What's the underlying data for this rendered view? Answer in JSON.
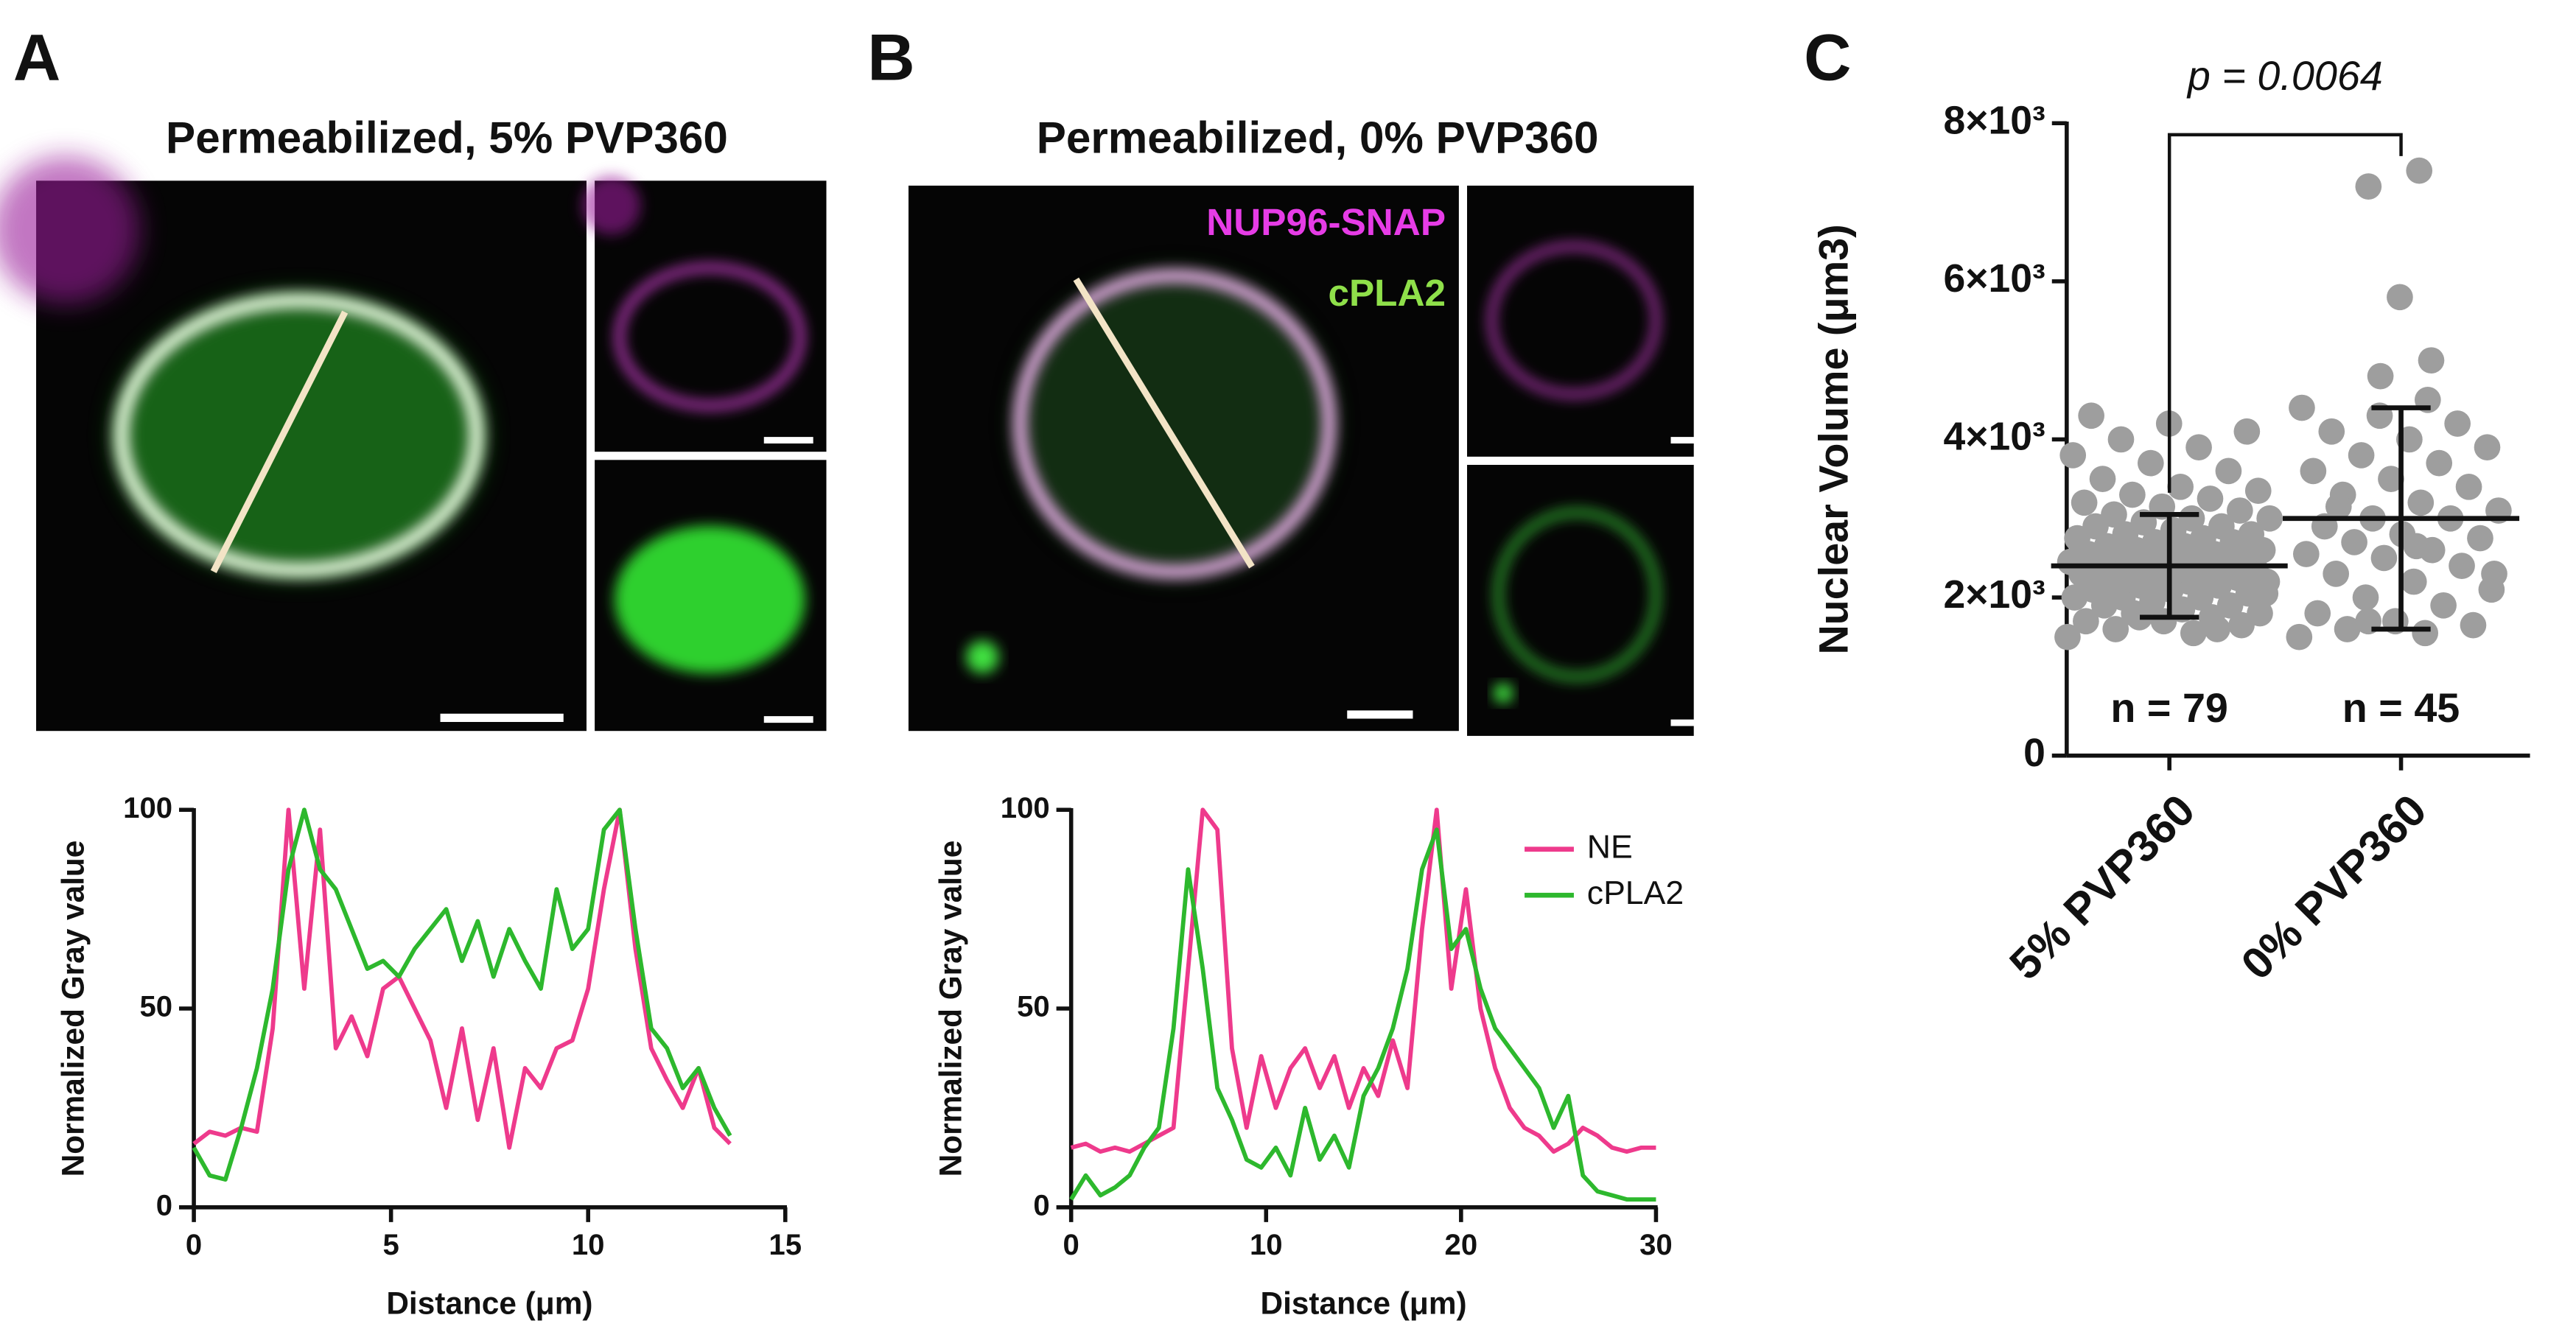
{
  "panels": [
    {
      "letter": "A",
      "title": "Permeabilized, 5% PVP360"
    },
    {
      "letter": "B",
      "title": "Permeabilized, 0% PVP360",
      "channel_labels": [
        {
          "text": "NUP96-SNAP",
          "color": "#e63ce6"
        },
        {
          "text": "cPLA2",
          "color": "#8fe04a"
        }
      ]
    },
    {
      "letter": "C"
    }
  ],
  "chart_data": [
    {
      "type": "line",
      "xlabel": "Distance (μm)",
      "ylabel": "Normalized Gray value",
      "xlim": [
        0,
        15
      ],
      "xticks": [
        0,
        5,
        10,
        15
      ],
      "ylim": [
        0,
        100
      ],
      "yticks": [
        0,
        50,
        100
      ],
      "legend": false,
      "x": [
        0,
        0.4,
        0.8,
        1.2,
        1.6,
        2.0,
        2.4,
        2.8,
        3.2,
        3.6,
        4.0,
        4.4,
        4.8,
        5.2,
        5.6,
        6.0,
        6.4,
        6.8,
        7.2,
        7.6,
        8.0,
        8.4,
        8.8,
        9.2,
        9.6,
        10.0,
        10.4,
        10.8,
        11.2,
        11.6,
        12.0,
        12.4,
        12.8,
        13.2,
        13.6
      ],
      "series": [
        {
          "name": "NE",
          "color": "#ee3a8c",
          "values": [
            16,
            19,
            18,
            20,
            19,
            45,
            100,
            55,
            95,
            40,
            48,
            38,
            55,
            58,
            50,
            42,
            25,
            45,
            22,
            40,
            15,
            35,
            30,
            40,
            42,
            55,
            80,
            100,
            65,
            40,
            32,
            25,
            35,
            20,
            16
          ]
        },
        {
          "name": "cPLA2",
          "color": "#2db82d",
          "values": [
            15,
            8,
            7,
            20,
            35,
            55,
            85,
            100,
            85,
            80,
            70,
            60,
            62,
            58,
            65,
            70,
            75,
            62,
            72,
            58,
            70,
            62,
            55,
            80,
            65,
            70,
            95,
            100,
            70,
            45,
            40,
            30,
            35,
            25,
            18
          ]
        }
      ]
    },
    {
      "type": "line",
      "xlabel": "Distance (μm)",
      "ylabel": "Normalized Gray value",
      "xlim": [
        0,
        30
      ],
      "xticks": [
        0,
        10,
        20,
        30
      ],
      "ylim": [
        0,
        100
      ],
      "yticks": [
        0,
        50,
        100
      ],
      "legend": true,
      "x": [
        0,
        0.75,
        1.5,
        2.25,
        3,
        3.75,
        4.5,
        5.25,
        6,
        6.75,
        7.5,
        8.25,
        9,
        9.75,
        10.5,
        11.25,
        12,
        12.75,
        13.5,
        14.25,
        15,
        15.75,
        16.5,
        17.25,
        18,
        18.75,
        19.5,
        20.25,
        21,
        21.75,
        22.5,
        23.25,
        24,
        24.75,
        25.5,
        26.25,
        27,
        27.75,
        28.5,
        29.25,
        30
      ],
      "series": [
        {
          "name": "NE",
          "color": "#ee3a8c",
          "values": [
            15,
            16,
            14,
            15,
            14,
            16,
            18,
            20,
            60,
            100,
            95,
            40,
            20,
            38,
            25,
            35,
            40,
            30,
            38,
            25,
            35,
            28,
            42,
            30,
            70,
            100,
            55,
            80,
            50,
            35,
            25,
            20,
            18,
            14,
            16,
            20,
            18,
            15,
            14,
            15,
            15
          ]
        },
        {
          "name": "cPLA2",
          "color": "#2db82d",
          "values": [
            2,
            8,
            3,
            5,
            8,
            15,
            20,
            45,
            85,
            60,
            30,
            22,
            12,
            10,
            15,
            8,
            25,
            12,
            18,
            10,
            28,
            35,
            45,
            60,
            85,
            95,
            65,
            70,
            55,
            45,
            40,
            35,
            30,
            20,
            28,
            8,
            4,
            3,
            2,
            2,
            2
          ]
        }
      ]
    },
    {
      "type": "dot",
      "ylabel": "Nuclear Volume (μm3)",
      "color": "#9e9e9e",
      "categories": [
        "5% PVP360",
        "0% PVP360"
      ],
      "ylim": [
        0,
        8000
      ],
      "yticks": [
        0,
        {
          "value": 2000,
          "label": "2×10³"
        },
        {
          "value": 4000,
          "label": "4×10³"
        },
        {
          "value": 6000,
          "label": "6×10³"
        },
        {
          "value": 8000,
          "label": "8×10³"
        }
      ],
      "n_labels": [
        "n = 79",
        "n = 45"
      ],
      "p_value": "p = 0.0064",
      "means": [
        2400,
        3000
      ],
      "sd": [
        650,
        1400
      ],
      "groups": [
        [
          1500,
          1550,
          1600,
          1650,
          1700,
          1700,
          1750,
          1800,
          1800,
          1850,
          1900,
          1900,
          1950,
          2000,
          2000,
          2000,
          2050,
          2100,
          2100,
          2150,
          2150,
          2200,
          2200,
          2200,
          2250,
          2250,
          2300,
          2300,
          2300,
          2350,
          2350,
          2400,
          2400,
          2400,
          2450,
          2450,
          2500,
          2500,
          2500,
          2550,
          2550,
          2600,
          2600,
          2650,
          2650,
          2700,
          2700,
          2750,
          2750,
          2800,
          2800,
          2850,
          2900,
          2900,
          2950,
          3000,
          3000,
          3050,
          3100,
          3150,
          3200,
          3250,
          3300,
          3350,
          3400,
          3500,
          3600,
          3700,
          3800,
          3900,
          4000,
          4100,
          4200,
          4300,
          1600,
          1750,
          2050,
          2350,
          2600
        ],
        [
          1500,
          1550,
          1600,
          1650,
          1700,
          1800,
          1900,
          2000,
          2100,
          2200,
          2300,
          2400,
          2500,
          2550,
          2600,
          2700,
          2750,
          2800,
          2900,
          3000,
          3000,
          3100,
          3200,
          3300,
          3400,
          3500,
          3600,
          3700,
          3800,
          3900,
          4000,
          4100,
          4200,
          4300,
          4400,
          4500,
          4800,
          5000,
          5800,
          7200,
          7400,
          1700,
          2300,
          2650,
          3150
        ]
      ]
    }
  ]
}
